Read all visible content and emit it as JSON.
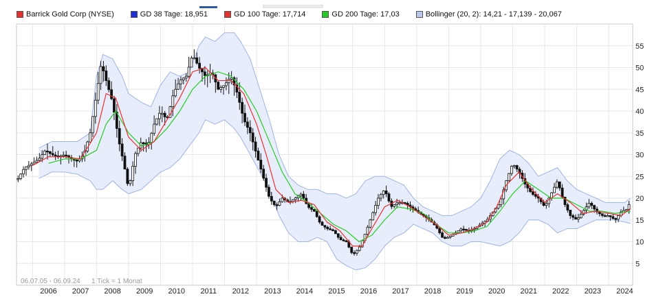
{
  "legend": [
    {
      "label": "Barrick Gold Corp (NYSE)",
      "color": "#e83030"
    },
    {
      "label": "GD 38 Tage: 18,951",
      "color": "#1c2fd8"
    },
    {
      "label": "GD 100 Tage: 17,714",
      "color": "#e83030"
    },
    {
      "label": "GD 200 Tage: 17,03",
      "color": "#22cc22"
    },
    {
      "label": "Bollinger (20, 2): 14,21 - 17,139 - 20,067",
      "color": "#b9c7ea"
    }
  ],
  "footer": {
    "range": "06.07.05 - 06.09.24",
    "tick_note": "1 Tick = 1 Monat"
  },
  "colors": {
    "gd100": "#e83030",
    "gd200": "#22cc22",
    "band_fill": "#e7edfa",
    "band_line": "#9fb4e2",
    "candle": "#111111",
    "grid": "#e6e6e6"
  },
  "chart_data": {
    "type": "line",
    "title": "",
    "xlabel": "",
    "ylabel": "",
    "x_ticks": [
      "2006",
      "2007",
      "2008",
      "2009",
      "2010",
      "2011",
      "2012",
      "2013",
      "2014",
      "2015",
      "2016",
      "2017",
      "2018",
      "2019",
      "2020",
      "2021",
      "2022",
      "2023",
      "2024"
    ],
    "y_ticks": [
      5,
      10,
      15,
      20,
      25,
      30,
      35,
      40,
      45,
      50,
      55
    ],
    "xlim": [
      2005.5,
      2024.75
    ],
    "ylim": [
      0,
      60
    ],
    "grid": true,
    "legend_position": "top-left",
    "price": {
      "name": "Barrick Gold Corp (NYSE)",
      "x": [
        2005.55,
        2005.75,
        2006.0,
        2006.2,
        2006.4,
        2006.6,
        2006.8,
        2007.0,
        2007.2,
        2007.4,
        2007.6,
        2007.8,
        2008.0,
        2008.15,
        2008.3,
        2008.5,
        2008.7,
        2008.85,
        2009.0,
        2009.2,
        2009.4,
        2009.6,
        2009.8,
        2010.0,
        2010.2,
        2010.4,
        2010.6,
        2010.8,
        2011.0,
        2011.2,
        2011.4,
        2011.6,
        2011.8,
        2012.0,
        2012.2,
        2012.4,
        2012.6,
        2012.8,
        2013.0,
        2013.2,
        2013.4,
        2013.6,
        2013.8,
        2014.0,
        2014.2,
        2014.4,
        2014.6,
        2014.8,
        2015.0,
        2015.2,
        2015.4,
        2015.6,
        2015.8,
        2016.0,
        2016.2,
        2016.4,
        2016.6,
        2016.8,
        2017.0,
        2017.2,
        2017.4,
        2017.6,
        2017.8,
        2018.0,
        2018.2,
        2018.4,
        2018.6,
        2018.8,
        2019.0,
        2019.2,
        2019.4,
        2019.6,
        2019.8,
        2020.0,
        2020.2,
        2020.4,
        2020.6,
        2020.8,
        2021.0,
        2021.2,
        2021.4,
        2021.6,
        2021.8,
        2022.0,
        2022.2,
        2022.4,
        2022.6,
        2022.8,
        2023.0,
        2023.2,
        2023.4,
        2023.6,
        2023.8,
        2024.0,
        2024.2,
        2024.4,
        2024.6,
        2024.68
      ],
      "y": [
        24.5,
        27,
        28,
        29,
        31,
        30,
        29.5,
        30,
        29,
        28.5,
        30,
        35,
        44,
        51,
        47,
        42,
        33,
        28,
        22,
        30,
        33,
        32,
        37,
        40,
        38,
        44,
        47,
        48,
        53,
        50,
        48,
        49,
        45,
        46,
        48,
        44,
        38,
        35,
        30,
        25,
        20,
        18,
        20,
        19,
        20,
        21,
        18,
        17,
        14,
        13,
        12.5,
        10.5,
        10,
        7,
        8.5,
        12,
        16,
        20,
        22,
        18,
        19,
        19,
        18,
        17,
        16,
        15,
        13.5,
        11,
        11,
        12,
        13,
        12.5,
        13,
        14,
        15,
        17,
        19,
        24,
        28,
        26,
        23,
        21,
        20,
        18,
        21,
        24,
        19,
        16,
        15,
        17,
        19,
        17,
        16,
        16,
        15,
        17,
        17.5,
        20
      ]
    },
    "gd100": {
      "name": "GD 100 Tage",
      "x": [
        2006.0,
        2006.5,
        2007.0,
        2007.5,
        2008.0,
        2008.3,
        2008.6,
        2009.0,
        2009.4,
        2009.8,
        2010.2,
        2010.6,
        2011.0,
        2011.4,
        2011.8,
        2012.2,
        2012.6,
        2013.0,
        2013.3,
        2013.6,
        2014.0,
        2014.4,
        2014.8,
        2015.2,
        2015.6,
        2016.0,
        2016.3,
        2016.6,
        2017.0,
        2017.4,
        2017.8,
        2018.2,
        2018.6,
        2019.0,
        2019.4,
        2019.8,
        2020.2,
        2020.5,
        2020.8,
        2021.2,
        2021.6,
        2022.0,
        2022.4,
        2022.8,
        2023.2,
        2023.6,
        2024.0,
        2024.4,
        2024.68
      ],
      "y": [
        27.5,
        29.5,
        29.5,
        29,
        35,
        44,
        43,
        34,
        31,
        33,
        38,
        43,
        49,
        50,
        47,
        47,
        44,
        37,
        30,
        22,
        19,
        19.5,
        18.5,
        14.5,
        12.5,
        9,
        9,
        13,
        18,
        19.5,
        18,
        16,
        14,
        11.5,
        12,
        13,
        14.5,
        18,
        23,
        26,
        22,
        19,
        21,
        19,
        16.5,
        17,
        16.5,
        16,
        17.7
      ]
    },
    "gd200": {
      "name": "GD 200 Tage",
      "x": [
        2006.5,
        2007.0,
        2007.5,
        2008.0,
        2008.3,
        2008.6,
        2009.0,
        2009.4,
        2009.8,
        2010.2,
        2010.6,
        2011.0,
        2011.4,
        2011.8,
        2012.2,
        2012.6,
        2013.0,
        2013.4,
        2013.8,
        2014.2,
        2014.6,
        2015.0,
        2015.4,
        2015.8,
        2016.2,
        2016.6,
        2017.0,
        2017.4,
        2017.8,
        2018.2,
        2018.6,
        2019.0,
        2019.4,
        2019.8,
        2020.2,
        2020.6,
        2021.0,
        2021.4,
        2021.8,
        2022.2,
        2022.6,
        2023.0,
        2023.4,
        2023.8,
        2024.2,
        2024.68
      ],
      "y": [
        28,
        29,
        29,
        31,
        37,
        40,
        35,
        32,
        33,
        36,
        40,
        45,
        48,
        49,
        48,
        45,
        40,
        33,
        26,
        21,
        19,
        16.5,
        14,
        12.5,
        10,
        11.5,
        15,
        18,
        17.5,
        16.5,
        14,
        12,
        12,
        12.5,
        13.5,
        17,
        21,
        24,
        22,
        20,
        20,
        18.5,
        17,
        17,
        16.5,
        17
      ]
    },
    "bollinger_upper": {
      "name": "Bollinger (20, 2)",
      "x": [
        2006.2,
        2006.6,
        2007.0,
        2007.4,
        2007.8,
        2008.0,
        2008.2,
        2008.5,
        2008.8,
        2009.0,
        2009.4,
        2009.7,
        2010.0,
        2010.3,
        2010.6,
        2010.9,
        2011.2,
        2011.4,
        2011.7,
        2012.0,
        2012.3,
        2012.5,
        2012.8,
        2013.1,
        2013.4,
        2013.7,
        2014.0,
        2014.3,
        2014.6,
        2014.9,
        2015.2,
        2015.5,
        2015.8,
        2016.1,
        2016.4,
        2016.7,
        2017.0,
        2017.3,
        2017.6,
        2017.9,
        2018.2,
        2018.5,
        2018.8,
        2019.1,
        2019.4,
        2019.7,
        2020.0,
        2020.3,
        2020.6,
        2020.9,
        2021.2,
        2021.5,
        2021.8,
        2022.1,
        2022.4,
        2022.7,
        2023.0,
        2023.3,
        2023.6,
        2023.9,
        2024.2,
        2024.5,
        2024.68
      ],
      "y": [
        31.5,
        33,
        33,
        33,
        35,
        48,
        53,
        52,
        48,
        44,
        42,
        41,
        46,
        49,
        48,
        49,
        55,
        57,
        56,
        58,
        58,
        56,
        52,
        45,
        38,
        30,
        25,
        23,
        22,
        22,
        21,
        21,
        20,
        21,
        24,
        25,
        25,
        24,
        23,
        20,
        18,
        17,
        16,
        16,
        17,
        18,
        20,
        24,
        29,
        31,
        30,
        28,
        25,
        26,
        27,
        24,
        22,
        21,
        20,
        19,
        19,
        19,
        20
      ]
    },
    "bollinger_lower": {
      "name": "Bollinger (20, 2)",
      "x": [
        2006.2,
        2006.6,
        2007.0,
        2007.4,
        2007.8,
        2008.0,
        2008.2,
        2008.5,
        2008.8,
        2009.0,
        2009.4,
        2009.7,
        2010.0,
        2010.3,
        2010.6,
        2010.9,
        2011.2,
        2011.4,
        2011.7,
        2012.0,
        2012.3,
        2012.5,
        2012.8,
        2013.1,
        2013.4,
        2013.7,
        2014.0,
        2014.3,
        2014.6,
        2014.9,
        2015.2,
        2015.5,
        2015.8,
        2016.1,
        2016.4,
        2016.7,
        2017.0,
        2017.3,
        2017.6,
        2017.9,
        2018.2,
        2018.5,
        2018.8,
        2019.1,
        2019.4,
        2019.7,
        2020.0,
        2020.3,
        2020.6,
        2020.9,
        2021.2,
        2021.5,
        2021.8,
        2022.1,
        2022.4,
        2022.7,
        2023.0,
        2023.3,
        2023.6,
        2023.9,
        2024.2,
        2024.5,
        2024.68
      ],
      "y": [
        24.5,
        26,
        26,
        25.5,
        24,
        22,
        22,
        24,
        22,
        21,
        22,
        24,
        26,
        27,
        29,
        32,
        35,
        38,
        37,
        38,
        36,
        34,
        30,
        26,
        22,
        16,
        12,
        10,
        10,
        11,
        10,
        6,
        4.5,
        3.5,
        4,
        6,
        9,
        11,
        12,
        14,
        13,
        12,
        10,
        9,
        9,
        10,
        10,
        9.5,
        9,
        10,
        12,
        15,
        15,
        14,
        12,
        13,
        13,
        14,
        15,
        15,
        15,
        14.5,
        14.2
      ]
    }
  }
}
